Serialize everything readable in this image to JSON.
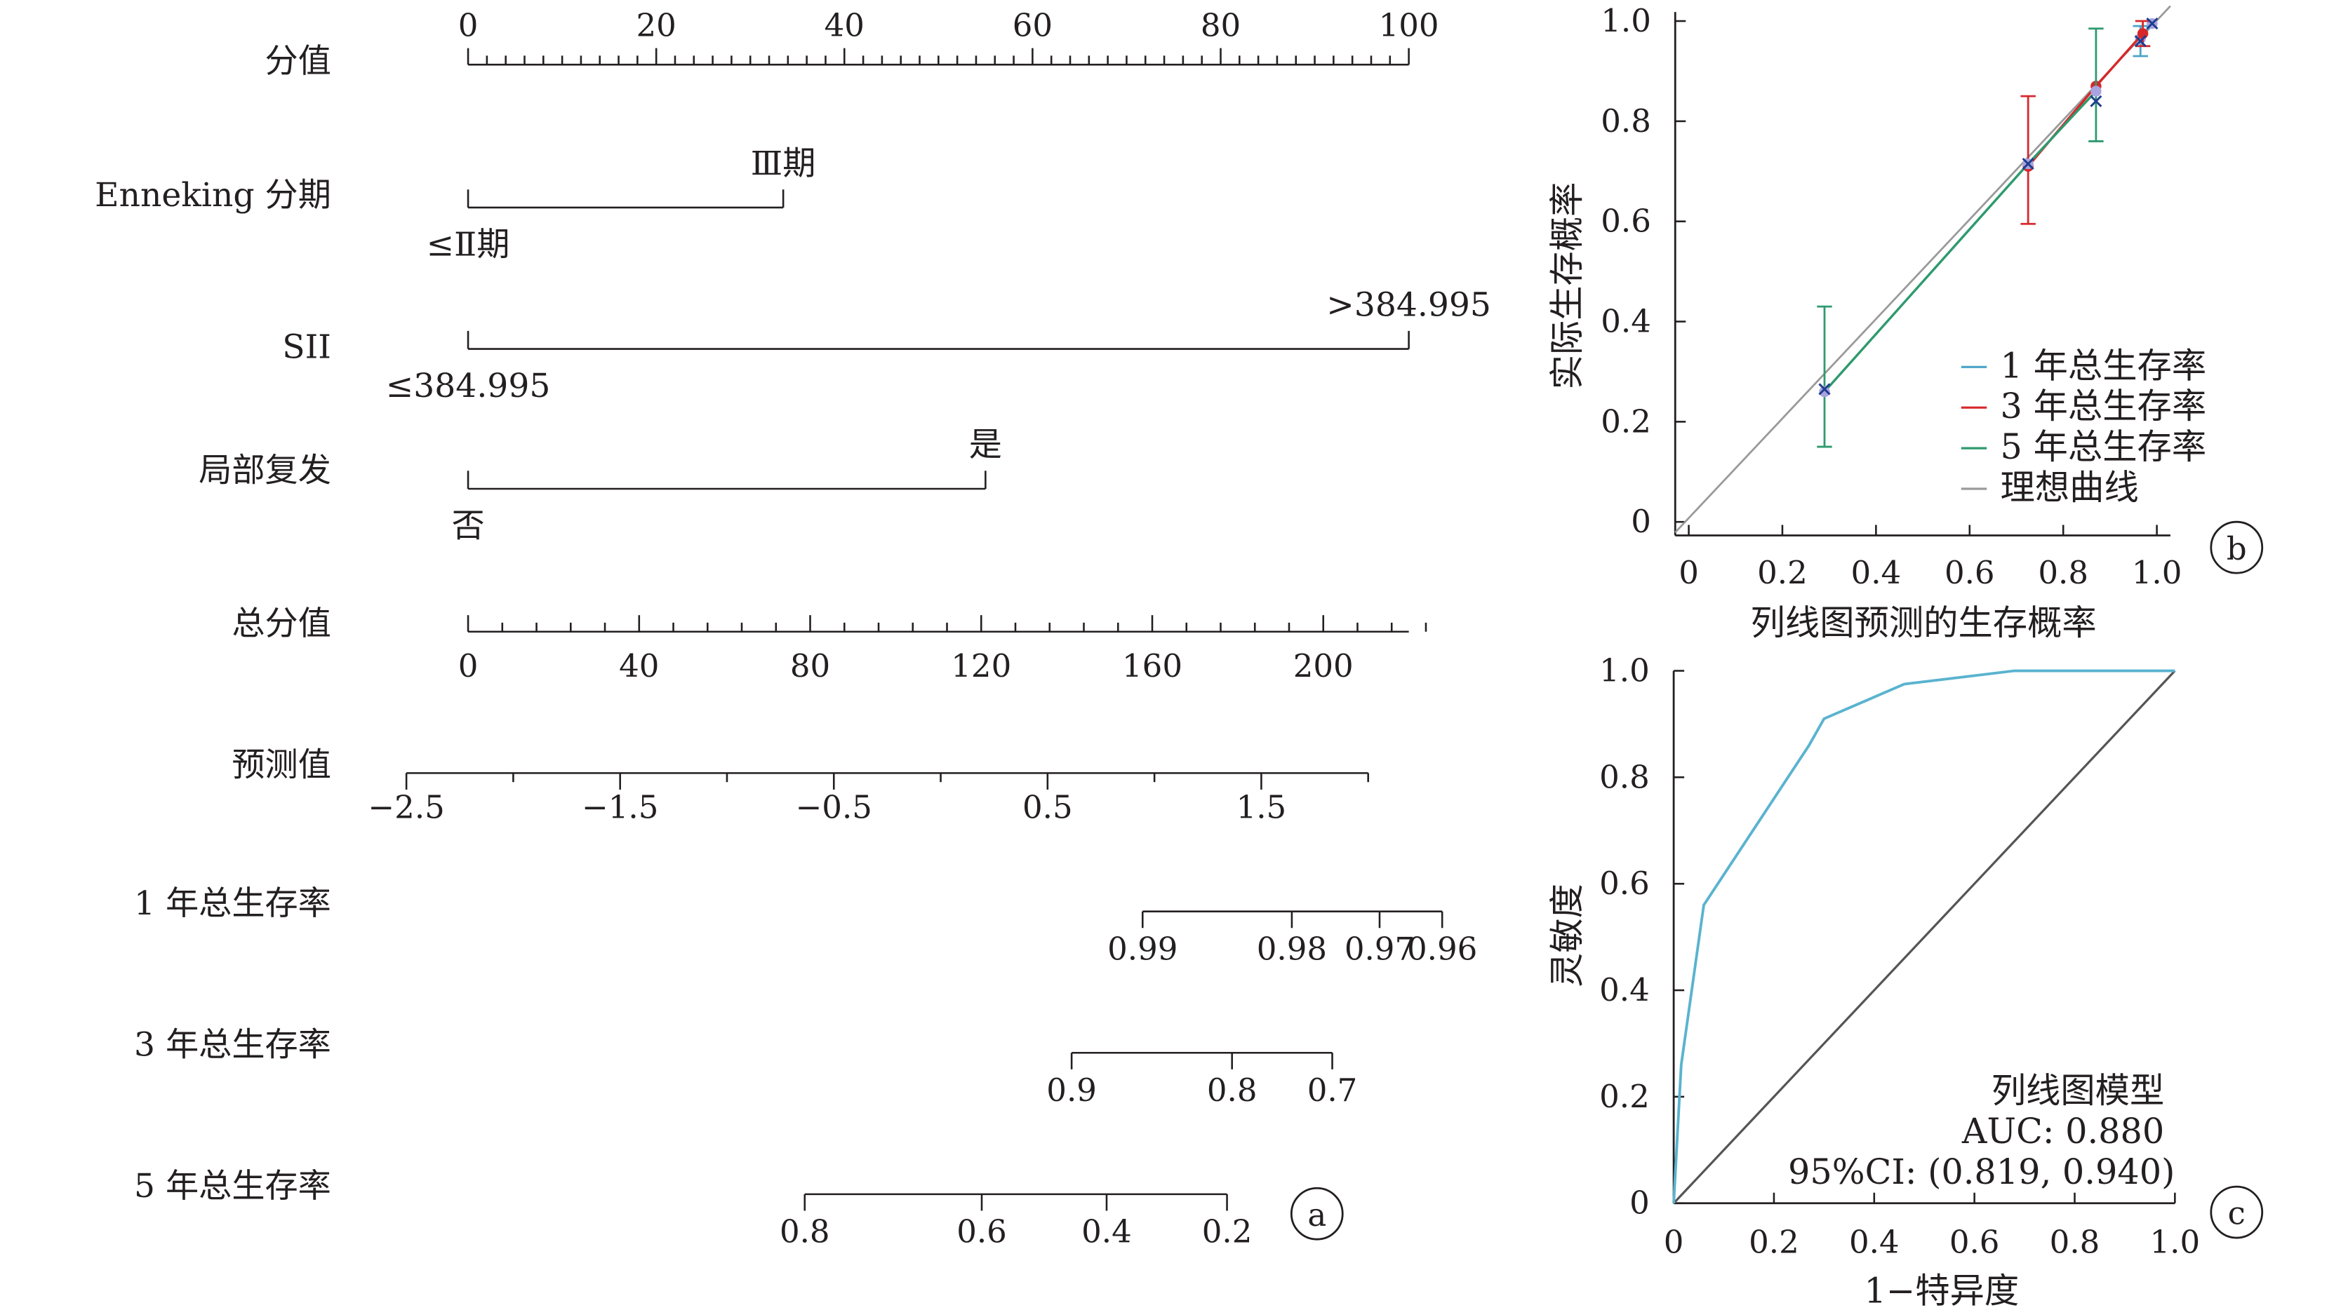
{
  "colors": {
    "ink": "#231f20",
    "one_year": "#4aa3c8",
    "three_year": "#d6282b",
    "five_year": "#2e9a6e",
    "ideal": "#9a9a9a",
    "roc": "#5ab3cf",
    "diagonal": "#555555",
    "marker": "#1f3f8f",
    "point_fill": "#a9a3e0"
  },
  "nomogram": {
    "panel_label": "a",
    "rows": [
      {
        "key": "points",
        "label": "分值",
        "type": "axis",
        "ticks": [
          0,
          20,
          40,
          60,
          80,
          100
        ],
        "min": 0,
        "max": 100,
        "minor_step": 2
      },
      {
        "key": "enneking",
        "label": "Enneking 分期",
        "type": "factor",
        "low_label": "≤Ⅱ期",
        "high_label": "Ⅲ期",
        "low_points": 0,
        "high_points": 33.5
      },
      {
        "key": "sii",
        "label": "SII",
        "type": "factor",
        "low_label": "≤384.995",
        "high_label": ">384.995",
        "low_points": 0,
        "high_points": 100
      },
      {
        "key": "recurrence",
        "label": "局部复发",
        "type": "factor",
        "low_label": "否",
        "high_label": "是",
        "low_points": 0,
        "high_points": 55
      },
      {
        "key": "total",
        "label": "总分值",
        "type": "axis",
        "ticks": [
          0,
          40,
          80,
          120,
          160,
          200
        ],
        "min": 0,
        "max": 220,
        "minor_step": 8
      },
      {
        "key": "lp",
        "label": "预测值",
        "type": "axis",
        "ticks": [
          -2.5,
          -1.5,
          -0.5,
          0.5,
          1.5
        ],
        "tick_labels": [
          "−2.5",
          "−1.5",
          "−0.5",
          "0.5",
          "1.5"
        ],
        "min": -2.5,
        "max": 2.0,
        "minor_step": 0.5
      },
      {
        "key": "s1",
        "label": "1 年总生存率",
        "type": "prob",
        "ticks": [
          0.99,
          0.98,
          0.97,
          0.96
        ]
      },
      {
        "key": "s3",
        "label": "3 年总生存率",
        "type": "prob",
        "ticks": [
          0.9,
          0.8,
          0.7
        ]
      },
      {
        "key": "s5",
        "label": "5 年总生存率",
        "type": "prob",
        "ticks": [
          0.8,
          0.6,
          0.4,
          0.2
        ]
      }
    ]
  },
  "chart_data": [
    {
      "type": "line",
      "panel": "b",
      "xlabel": "列线图预测的生存概率",
      "ylabel": "实际生存概率",
      "xlim": [
        0,
        1.0
      ],
      "ylim": [
        0,
        1.0
      ],
      "xticks": [
        "0",
        "0.2",
        "0.4",
        "0.6",
        "0.8",
        "1.0"
      ],
      "yticks": [
        "0",
        "0.2",
        "0.4",
        "0.6",
        "0.8",
        "1.0"
      ],
      "legend_position": "bottom-right",
      "series": [
        {
          "name": "1 年总生存率",
          "x": [
            0.965,
            0.99
          ],
          "y": [
            0.965,
            0.995
          ],
          "ci_low": [
            0.93,
            0.985
          ],
          "ci_high": [
            0.99,
            1.0
          ]
        },
        {
          "name": "3 年总生存率",
          "x": [
            0.725,
            0.87,
            0.97
          ],
          "y": [
            0.71,
            0.87,
            0.975
          ],
          "ci_low": [
            0.595,
            0.87,
            0.95
          ],
          "ci_high": [
            0.85,
            0.87,
            1.0
          ]
        },
        {
          "name": "5 年总生存率",
          "x": [
            0.29,
            0.725,
            0.87
          ],
          "y": [
            0.26,
            0.715,
            0.86
          ],
          "ci_low": [
            0.15,
            0.715,
            0.76
          ],
          "ci_high": [
            0.43,
            0.715,
            0.985
          ]
        },
        {
          "name": "理想曲线",
          "x": [
            0,
            1.0
          ],
          "y": [
            0,
            1.0
          ]
        }
      ],
      "markers_x": [
        [
          0.29,
          0.265
        ],
        [
          0.725,
          0.715
        ],
        [
          0.87,
          0.84
        ],
        [
          0.965,
          0.96
        ],
        [
          0.99,
          0.995
        ]
      ]
    },
    {
      "type": "line",
      "panel": "c",
      "xlabel": "1−特异度",
      "ylabel": "灵敏度",
      "xlim": [
        0,
        1.0
      ],
      "ylim": [
        0,
        1.0
      ],
      "xticks": [
        "0",
        "0.2",
        "0.4",
        "0.6",
        "0.8",
        "1.0"
      ],
      "yticks": [
        "0",
        "0.2",
        "0.4",
        "0.6",
        "0.8",
        "1.0"
      ],
      "series": [
        {
          "name": "列线图模型",
          "x": [
            0,
            0.015,
            0.06,
            0.27,
            0.3,
            0.46,
            0.68,
            1.0
          ],
          "y": [
            0,
            0.26,
            0.56,
            0.86,
            0.91,
            0.975,
            1.0,
            1.0
          ]
        },
        {
          "x": [
            0,
            1.0
          ],
          "y": [
            0,
            1.0
          ]
        }
      ],
      "annotation": {
        "title": "列线图模型",
        "auc": "AUC: 0.880",
        "ci": "95%CI: (0.819, 0.940)"
      }
    }
  ]
}
